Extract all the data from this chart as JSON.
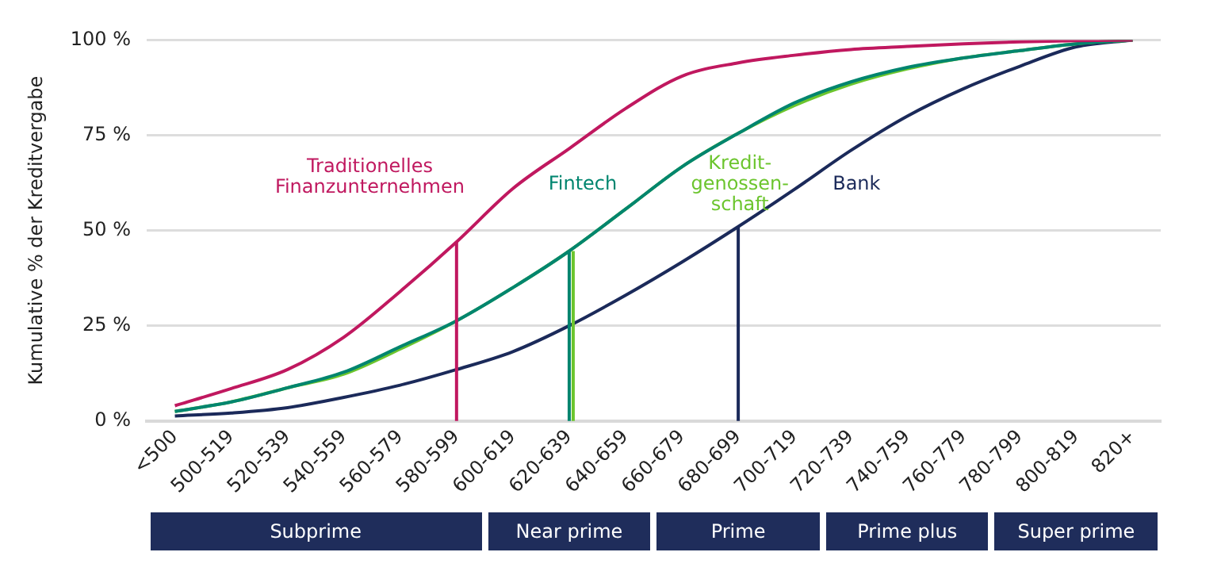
{
  "chart_data": {
    "type": "line",
    "ylabel": "Kumulative % der Kreditvergabe",
    "categories": [
      "<500",
      "500-519",
      "520-539",
      "540-559",
      "560-579",
      "580-599",
      "600-619",
      "620-639",
      "640-659",
      "660-679",
      "680-699",
      "700-719",
      "720-739",
      "740-759",
      "760-779",
      "780-799",
      "800-819",
      "820+"
    ],
    "series": [
      {
        "name": "Traditionelles\nFinanzunternehmen",
        "color": "#c0185f",
        "values": [
          4,
          8.5,
          13.5,
          22,
          34,
          47,
          61,
          71.5,
          82,
          90.5,
          94,
          96,
          97.5,
          98.3,
          99,
          99.5,
          99.8,
          100
        ]
      },
      {
        "name": "Fintech",
        "color": "#00856f",
        "values": [
          2.5,
          5,
          8.7,
          12.8,
          19.5,
          26.3,
          35,
          44.6,
          55.6,
          66.7,
          75.5,
          83.5,
          89,
          92.8,
          95.3,
          97.2,
          99,
          100
        ]
      },
      {
        "name": "Kredit-\ngenossen-\nschaft",
        "color": "#6cc52e",
        "values": [
          2.5,
          5,
          8.7,
          12.3,
          18.9,
          26.3,
          35,
          44.6,
          55.6,
          66.7,
          75.5,
          82.8,
          88.4,
          92.4,
          95.3,
          97.2,
          99,
          100
        ]
      },
      {
        "name": "Bank",
        "color": "#1b2a5a",
        "values": [
          1.3,
          2.1,
          3.5,
          6.2,
          9.4,
          13.5,
          18.2,
          25,
          33,
          41.7,
          51,
          60.8,
          71,
          80,
          87.2,
          93.1,
          98.2,
          100
        ]
      }
    ],
    "ylim": [
      0,
      100
    ],
    "yticks": [
      {
        "value": 0,
        "label": "0 %"
      },
      {
        "value": 25,
        "label": "25 %"
      },
      {
        "value": 50,
        "label": "50 %"
      },
      {
        "value": 75,
        "label": "75 %"
      },
      {
        "value": 100,
        "label": "100 %"
      }
    ],
    "grid": "y",
    "legend": false,
    "marker": "none",
    "line_style": "solid",
    "ref_lines": [
      {
        "axis": "x",
        "value": "580-599",
        "color": "#c0185f"
      },
      {
        "axis": "x",
        "value": "620-639",
        "color": "#00856f"
      },
      {
        "axis": "x",
        "value": "620-639",
        "color": "#6cc52e"
      },
      {
        "axis": "x",
        "value": "680-699",
        "color": "#1b2a5a"
      }
    ],
    "annotations": [
      "Subprime",
      "Near prime",
      "Prime",
      "Prime plus",
      "Super prime"
    ]
  }
}
